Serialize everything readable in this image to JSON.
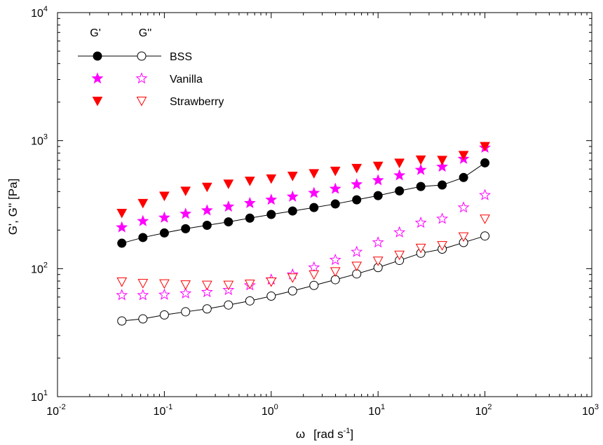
{
  "chart_data": {
    "type": "scatter",
    "x_scale": "log",
    "y_scale": "log",
    "xlim": [
      0.01,
      1000
    ],
    "ylim": [
      10,
      10000
    ],
    "xlabel": {
      "symbol": "ω",
      "text": "[rad s",
      "sup": "-1",
      "close": "]"
    },
    "ylabel": "G', G''  [Pa]",
    "x_ticks": [
      {
        "base": "10",
        "exp": "-2"
      },
      {
        "base": "10",
        "exp": "-1"
      },
      {
        "base": "10",
        "exp": "0"
      },
      {
        "base": "10",
        "exp": "1"
      },
      {
        "base": "10",
        "exp": "2"
      },
      {
        "base": "10",
        "exp": "3"
      }
    ],
    "y_ticks": [
      {
        "base": "10",
        "exp": "1"
      },
      {
        "base": "10",
        "exp": "2"
      },
      {
        "base": "10",
        "exp": "3"
      },
      {
        "base": "10",
        "exp": "4"
      }
    ],
    "grid": false,
    "legend_position": "top-left",
    "legend_headers": [
      "G'",
      "G''"
    ],
    "x": [
      0.04,
      0.063,
      0.1,
      0.158,
      0.251,
      0.398,
      0.631,
      1.0,
      1.585,
      2.512,
      3.981,
      6.31,
      10.0,
      15.85,
      25.12,
      39.81,
      63.1,
      100.0
    ],
    "series": [
      {
        "name": "BSS",
        "modulus": "G'",
        "marker": "circle-filled",
        "connected": true,
        "color": "#000000",
        "values": [
          158,
          175,
          190,
          205,
          218,
          232,
          248,
          265,
          282,
          300,
          320,
          345,
          372,
          405,
          438,
          450,
          515,
          670
        ]
      },
      {
        "name": "BSS",
        "modulus": "G''",
        "marker": "circle-open",
        "connected": true,
        "color": "#000000",
        "values": [
          39,
          40.5,
          43.5,
          46,
          48.5,
          52,
          56,
          61,
          67,
          74,
          82,
          91,
          102,
          116,
          132,
          142,
          160,
          180
        ]
      },
      {
        "name": "Vanilla",
        "modulus": "G'",
        "marker": "star-filled",
        "connected": false,
        "color": "#ff00ff",
        "values": [
          210,
          235,
          250,
          268,
          285,
          305,
          325,
          345,
          365,
          390,
          420,
          455,
          490,
          535,
          590,
          625,
          720,
          880
        ]
      },
      {
        "name": "Vanilla",
        "modulus": "G''",
        "marker": "star-open",
        "connected": false,
        "color": "#ff00ff",
        "values": [
          62,
          62,
          62.5,
          64,
          65.5,
          68,
          74,
          82,
          90,
          102,
          117,
          135,
          160,
          192,
          228,
          245,
          300,
          375
        ]
      },
      {
        "name": "Strawberry",
        "modulus": "G'",
        "marker": "triangle-down-filled",
        "connected": false,
        "color": "#ff0000",
        "values": [
          272,
          325,
          370,
          405,
          435,
          460,
          485,
          505,
          530,
          555,
          580,
          610,
          635,
          670,
          710,
          705,
          770,
          905
        ]
      },
      {
        "name": "Strawberry",
        "modulus": "G''",
        "marker": "triangle-down-open",
        "connected": false,
        "color": "#ff0000",
        "values": [
          79,
          77,
          76.5,
          75,
          74.5,
          74.5,
          76,
          79,
          85,
          90,
          95,
          105,
          115,
          128,
          145,
          152,
          178,
          245
        ]
      }
    ]
  }
}
